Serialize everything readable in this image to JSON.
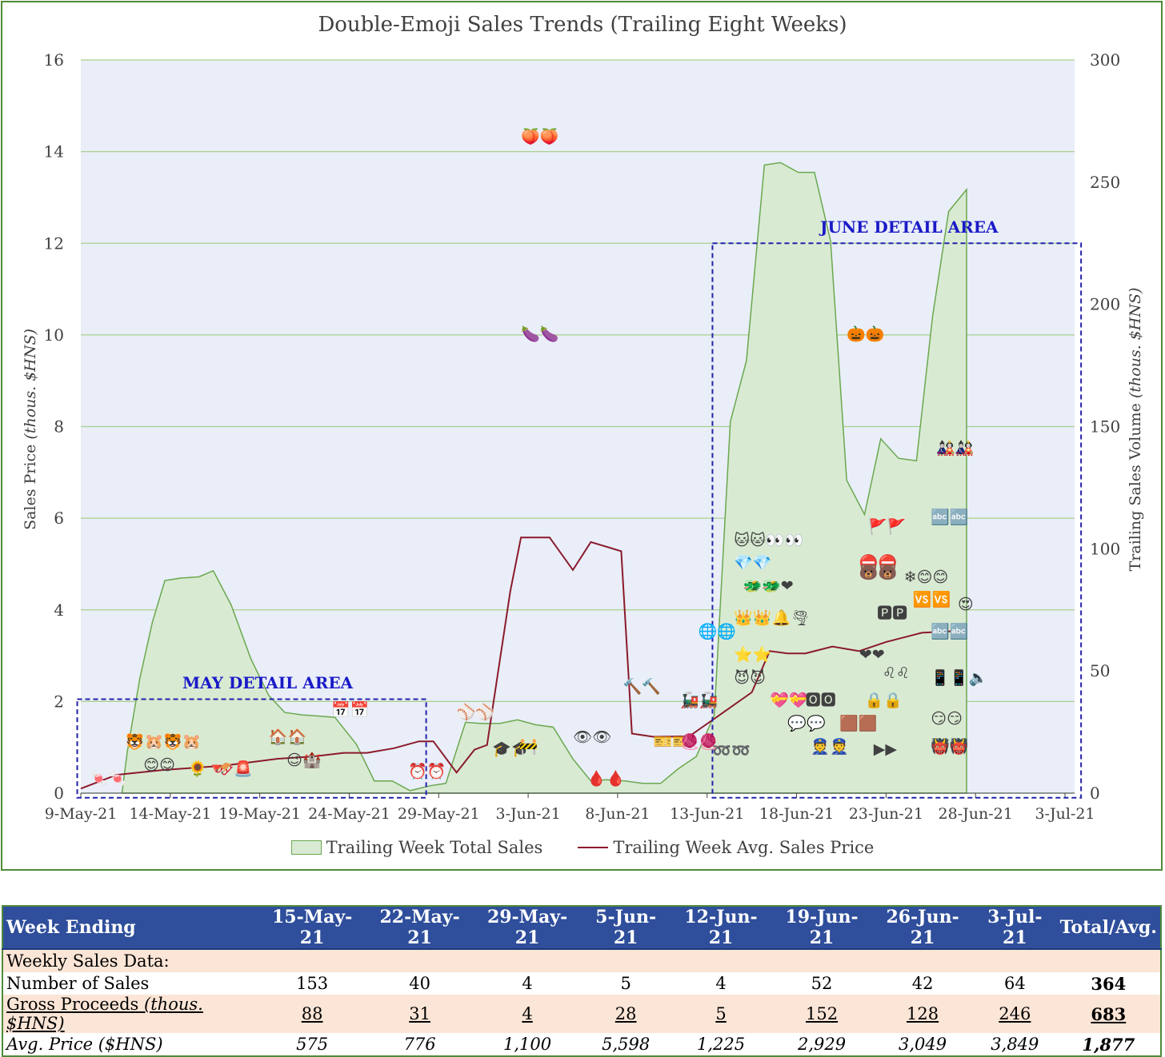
{
  "chart_data": {
    "type": "area",
    "title": "Double-Emoji Sales Trends (Trailing Eight Weeks)",
    "ylabel": "Sales Price",
    "ylabel_unit": "(thous. $HNS)",
    "y2label": "Trailing Sales Volume",
    "y2label_unit": "(thous. $HNS)",
    "ylim": [
      0,
      16
    ],
    "y2lim": [
      0,
      300
    ],
    "yticks": [
      "0",
      "2",
      "4",
      "6",
      "8",
      "10",
      "12",
      "14",
      "16"
    ],
    "y2ticks": [
      "0",
      "50",
      "100",
      "150",
      "200",
      "250",
      "300"
    ],
    "xticks": [
      "9-May-21",
      "14-May-21",
      "19-May-21",
      "24-May-21",
      "29-May-21",
      "3-Jun-21",
      "8-Jun-21",
      "13-Jun-21",
      "18-Jun-21",
      "23-Jun-21",
      "28-Jun-21",
      "3-Jul-21"
    ],
    "x_start": "2021-05-09",
    "grid": true,
    "legend_position": "bottom",
    "series": [
      {
        "name": "Trailing Week Total Sales",
        "axis": "right",
        "style": "area",
        "color": "#d9ead3",
        "edge_color": "#6aa84f",
        "points": [
          [
            2.3,
            0
          ],
          [
            2.6,
            17
          ],
          [
            3.3,
            47
          ],
          [
            4,
            70
          ],
          [
            4.7,
            87
          ],
          [
            5.6,
            88
          ],
          [
            6.6,
            88.5
          ],
          [
            7.4,
            91
          ],
          [
            8.4,
            77
          ],
          [
            9.5,
            55
          ],
          [
            10.5,
            40
          ],
          [
            11.4,
            33
          ],
          [
            12.4,
            32
          ],
          [
            13.4,
            31.5
          ],
          [
            14.2,
            31
          ],
          [
            15.4,
            20
          ],
          [
            16.4,
            5
          ],
          [
            17.4,
            5
          ],
          [
            18.4,
            1
          ],
          [
            19.5,
            3
          ],
          [
            20.4,
            4
          ],
          [
            21.5,
            29
          ],
          [
            22.4,
            28.5
          ],
          [
            23.4,
            28.5
          ],
          [
            24.4,
            30
          ],
          [
            25.4,
            28
          ],
          [
            26.4,
            27
          ],
          [
            27.5,
            14
          ],
          [
            28.5,
            5
          ],
          [
            29.4,
            5.5
          ],
          [
            30.4,
            5
          ],
          [
            31.4,
            4
          ],
          [
            32.4,
            4
          ],
          [
            33.4,
            10
          ],
          [
            34.4,
            15
          ],
          [
            35.4,
            32
          ],
          [
            36.3,
            152
          ],
          [
            37.2,
            177
          ],
          [
            38.2,
            257
          ],
          [
            39.1,
            258
          ],
          [
            40.1,
            254
          ],
          [
            41,
            254
          ],
          [
            41.9,
            226
          ],
          [
            42.8,
            128
          ],
          [
            43.8,
            114
          ],
          [
            44.7,
            145
          ],
          [
            45.7,
            137
          ],
          [
            46.7,
            136
          ],
          [
            47.6,
            195
          ],
          [
            48.5,
            238
          ],
          [
            49.5,
            247
          ],
          [
            49.5,
            0
          ]
        ]
      },
      {
        "name": "Trailing Week Avg. Sales Price",
        "axis": "left",
        "style": "line",
        "color": "#8b1a2b",
        "points": [
          [
            0,
            0.1
          ],
          [
            2,
            0.4
          ],
          [
            4.5,
            0.5
          ],
          [
            8,
            0.6
          ],
          [
            11,
            0.75
          ],
          [
            13,
            0.8
          ],
          [
            14.7,
            0.88
          ],
          [
            16,
            0.88
          ],
          [
            17.5,
            0.98
          ],
          [
            18.9,
            1.13
          ],
          [
            19.7,
            1.13
          ],
          [
            21,
            0.45
          ],
          [
            22,
            0.95
          ],
          [
            22.7,
            1.05
          ],
          [
            24,
            4.4
          ],
          [
            24.6,
            5.58
          ],
          [
            26.2,
            5.58
          ],
          [
            27.5,
            4.87
          ],
          [
            28.5,
            5.48
          ],
          [
            30.2,
            5.28
          ],
          [
            30.8,
            1.3
          ],
          [
            32,
            1.23
          ],
          [
            34,
            1.24
          ],
          [
            35.5,
            1.65
          ],
          [
            37.5,
            2.2
          ],
          [
            38.5,
            3.1
          ],
          [
            39.5,
            3.05
          ],
          [
            40.5,
            3.05
          ],
          [
            42,
            3.2
          ],
          [
            43.5,
            3.1
          ],
          [
            45,
            3.3
          ],
          [
            47,
            3.5
          ],
          [
            49.5,
            3.55
          ]
        ]
      }
    ],
    "annotations": [
      {
        "text": "MAY DETAIL AREA"
      },
      {
        "text": "JUNE DETAIL AREA"
      }
    ],
    "emoji_marks": [
      {
        "glyph": "🍑🍑",
        "x": 24.6,
        "y": 14.3
      },
      {
        "glyph": "🍆🍆",
        "x": 24.6,
        "y": 10.0
      },
      {
        "glyph": "🎃🎃",
        "x": 42.8,
        "y": 10.0
      },
      {
        "glyph": "⚾⚾",
        "x": 21.0,
        "y": 1.75
      },
      {
        "glyph": "🎓🎓",
        "x": 23.0,
        "y": 0.95
      },
      {
        "glyph": "🚧",
        "x": 24.5,
        "y": 1.0
      },
      {
        "glyph": "👁👁",
        "x": 27.5,
        "y": 1.2
      },
      {
        "glyph": "🩸🩸",
        "x": 28.3,
        "y": 0.3
      },
      {
        "glyph": "🔨🔨",
        "x": 30.3,
        "y": 2.3
      },
      {
        "glyph": "🎫🎫",
        "x": 32.0,
        "y": 1.1
      },
      {
        "glyph": "⏰⏰",
        "x": 18.3,
        "y": 0.45
      },
      {
        "glyph": "📅📅",
        "x": 14.0,
        "y": 1.8
      },
      {
        "glyph": "🍬🍬",
        "x": 0.5,
        "y": 0.3
      },
      {
        "glyph": "🐯🐹🐯🐹",
        "x": 2.5,
        "y": 1.1
      },
      {
        "glyph": "😊😊",
        "x": 3.5,
        "y": 0.6
      },
      {
        "glyph": "🌻🔻",
        "x": 6.0,
        "y": 0.5
      },
      {
        "glyph": "🏠🏠",
        "x": 10.5,
        "y": 1.2
      },
      {
        "glyph": "😉🏰",
        "x": 11.5,
        "y": 0.7
      },
      {
        "glyph": "🛷🚨",
        "x": 7.5,
        "y": 0.5
      },
      {
        "glyph": "🐱🐱👀👀",
        "x": 36.5,
        "y": 5.5
      },
      {
        "glyph": "💎💎",
        "x": 36.5,
        "y": 5.0
      },
      {
        "glyph": "🐲🐲❤",
        "x": 37.0,
        "y": 4.5
      },
      {
        "glyph": "👑👑🔔🌪",
        "x": 36.5,
        "y": 3.8
      },
      {
        "glyph": "🌐🌐",
        "x": 34.5,
        "y": 3.5
      },
      {
        "glyph": "⭐⭐",
        "x": 36.5,
        "y": 3.0
      },
      {
        "glyph": "😈😈",
        "x": 36.5,
        "y": 2.5
      },
      {
        "glyph": "🚂🚂",
        "x": 33.5,
        "y": 2.0
      },
      {
        "glyph": "💝💝",
        "x": 38.5,
        "y": 2.0
      },
      {
        "glyph": "⛔⛔",
        "x": 43.5,
        "y": 5.0
      },
      {
        "glyph": "🐻🐻",
        "x": 43.5,
        "y": 4.8
      },
      {
        "glyph": "❄😊😊",
        "x": 46.0,
        "y": 4.7
      },
      {
        "glyph": "🆚🆚",
        "x": 46.5,
        "y": 4.2
      },
      {
        "glyph": "🅿🅿",
        "x": 44.5,
        "y": 3.9
      },
      {
        "glyph": "❤❤",
        "x": 43.5,
        "y": 3.0
      },
      {
        "glyph": "♌♌",
        "x": 44.8,
        "y": 2.6
      },
      {
        "glyph": "🔒🔒",
        "x": 43.8,
        "y": 2.0
      },
      {
        "glyph": "🟫🟫",
        "x": 42.4,
        "y": 1.5
      },
      {
        "glyph": "🅾🅾",
        "x": 40.5,
        "y": 2.0
      },
      {
        "glyph": "💬💬",
        "x": 39.5,
        "y": 1.5
      },
      {
        "glyph": "👮👮",
        "x": 40.8,
        "y": 1.0
      },
      {
        "glyph": "▶▶",
        "x": 44.3,
        "y": 0.95
      },
      {
        "glyph": "🚩🚩",
        "x": 44.0,
        "y": 5.8
      },
      {
        "glyph": "🔤🔤",
        "x": 47.5,
        "y": 6.0
      },
      {
        "glyph": "🎎🎎",
        "x": 47.8,
        "y": 7.5
      },
      {
        "glyph": "😍",
        "x": 49.0,
        "y": 4.1
      },
      {
        "glyph": "🔤🔤",
        "x": 47.5,
        "y": 3.5
      },
      {
        "glyph": "📱📱🔈",
        "x": 47.5,
        "y": 2.5
      },
      {
        "glyph": "😏😏",
        "x": 47.5,
        "y": 1.6
      },
      {
        "glyph": "👹👹",
        "x": 47.5,
        "y": 1.0
      },
      {
        "glyph": "➿➿",
        "x": 35.3,
        "y": 0.9
      },
      {
        "glyph": "🧶🧶",
        "x": 33.5,
        "y": 1.1
      }
    ]
  },
  "table": {
    "header": [
      "Week Ending",
      "15-May-21",
      "22-May-21",
      "29-May-21",
      "5-Jun-21",
      "12-Jun-21",
      "19-Jun-21",
      "26-Jun-21",
      "3-Jul-21",
      "Total/Avg."
    ],
    "section_label": "Weekly Sales Data:",
    "rows": [
      {
        "label": "Number of Sales",
        "label_unit": "",
        "values": [
          "153",
          "40",
          "4",
          "5",
          "4",
          "52",
          "42",
          "64",
          "364"
        ]
      },
      {
        "label": "Gross Proceeds",
        "label_unit": "(thous. $HNS)",
        "values": [
          "88",
          "31",
          "4",
          "28",
          "5",
          "152",
          "128",
          "246",
          "683"
        ]
      },
      {
        "label": "Avg. Price ($HNS)",
        "label_unit": "",
        "values": [
          "575",
          "776",
          "1,100",
          "5,598",
          "1,225",
          "2,929",
          "3,049",
          "3,849",
          "1,877"
        ]
      }
    ]
  }
}
